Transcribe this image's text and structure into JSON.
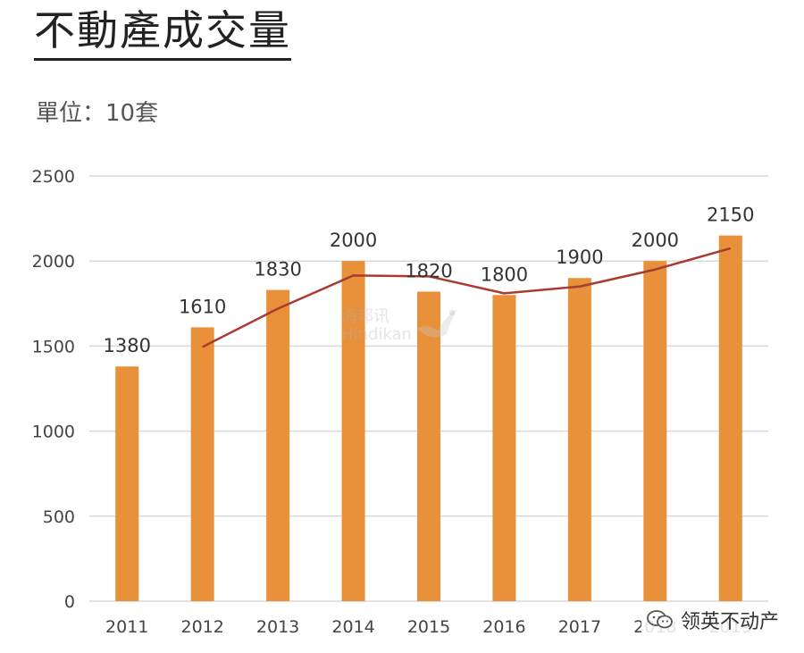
{
  "title": "不動產成交量",
  "subtitle": "單位：10套",
  "watermark": {
    "line1": "海邦讯",
    "line2": "Hindikan"
  },
  "brand": {
    "label": "领英不动产",
    "icon": "wechat-icon"
  },
  "colors": {
    "bar": "#E8903A",
    "line": "#A83B32",
    "grid": "#D9D9D9"
  },
  "chart_data": {
    "type": "bar",
    "categories": [
      "2011",
      "2012",
      "2013",
      "2014",
      "2015",
      "2016",
      "2017",
      "2018",
      "2019"
    ],
    "values": [
      1380,
      1610,
      1830,
      2000,
      1820,
      1800,
      1900,
      2000,
      2150
    ],
    "data_labels": [
      "1380",
      "1610",
      "1830",
      "2000",
      "1820",
      "1800",
      "1900",
      "2000",
      "2150"
    ],
    "trend_line": {
      "type": "line",
      "x": [
        "2012",
        "2013",
        "2014",
        "2015",
        "2016",
        "2017",
        "2018",
        "2019"
      ],
      "values": [
        1495,
        1720,
        1915,
        1910,
        1810,
        1850,
        1950,
        2075
      ]
    },
    "yticks": [
      "0",
      "500",
      "1000",
      "1500",
      "2000",
      "2500"
    ],
    "ylim": [
      0,
      2500
    ],
    "grid": true,
    "legend": "none"
  }
}
